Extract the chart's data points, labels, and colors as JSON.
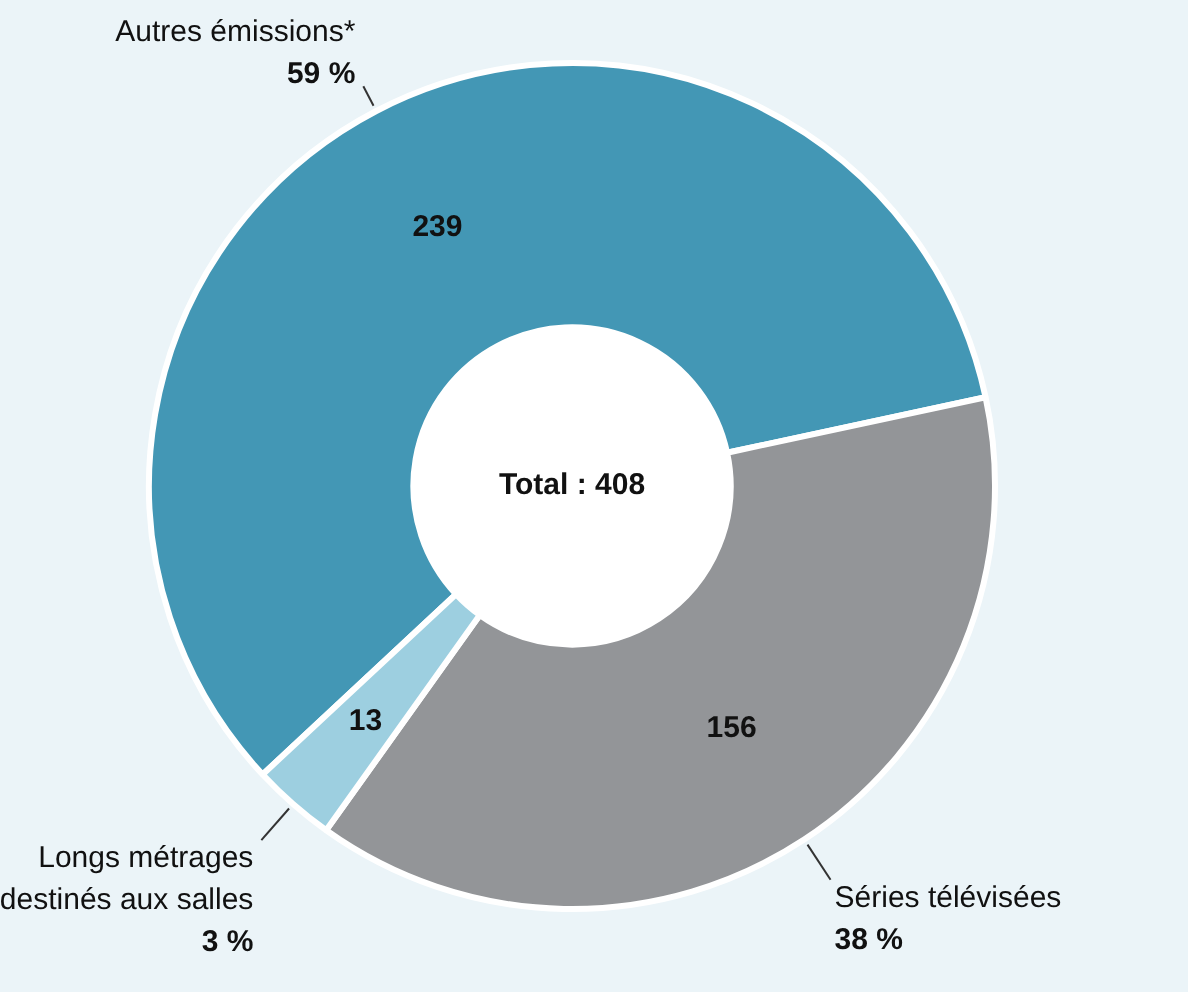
{
  "chart_data": {
    "type": "donut",
    "categories": [
      "Autres émissions*",
      "Séries télévisées",
      "Longs métrages destinés aux salles"
    ],
    "values": [
      239,
      156,
      13
    ],
    "colors": [
      "#4397b5",
      "#939598",
      "#9dcfe0"
    ],
    "data_labels": true,
    "annotations": [
      "Total : 408",
      {
        "text": "59 %",
        "x": "Autres émissions*"
      },
      {
        "text": "38 %",
        "x": "Séries télévisées"
      },
      {
        "text": "3 %",
        "x": "Longs métrages destinés aux salles"
      }
    ],
    "legend": false
  }
}
